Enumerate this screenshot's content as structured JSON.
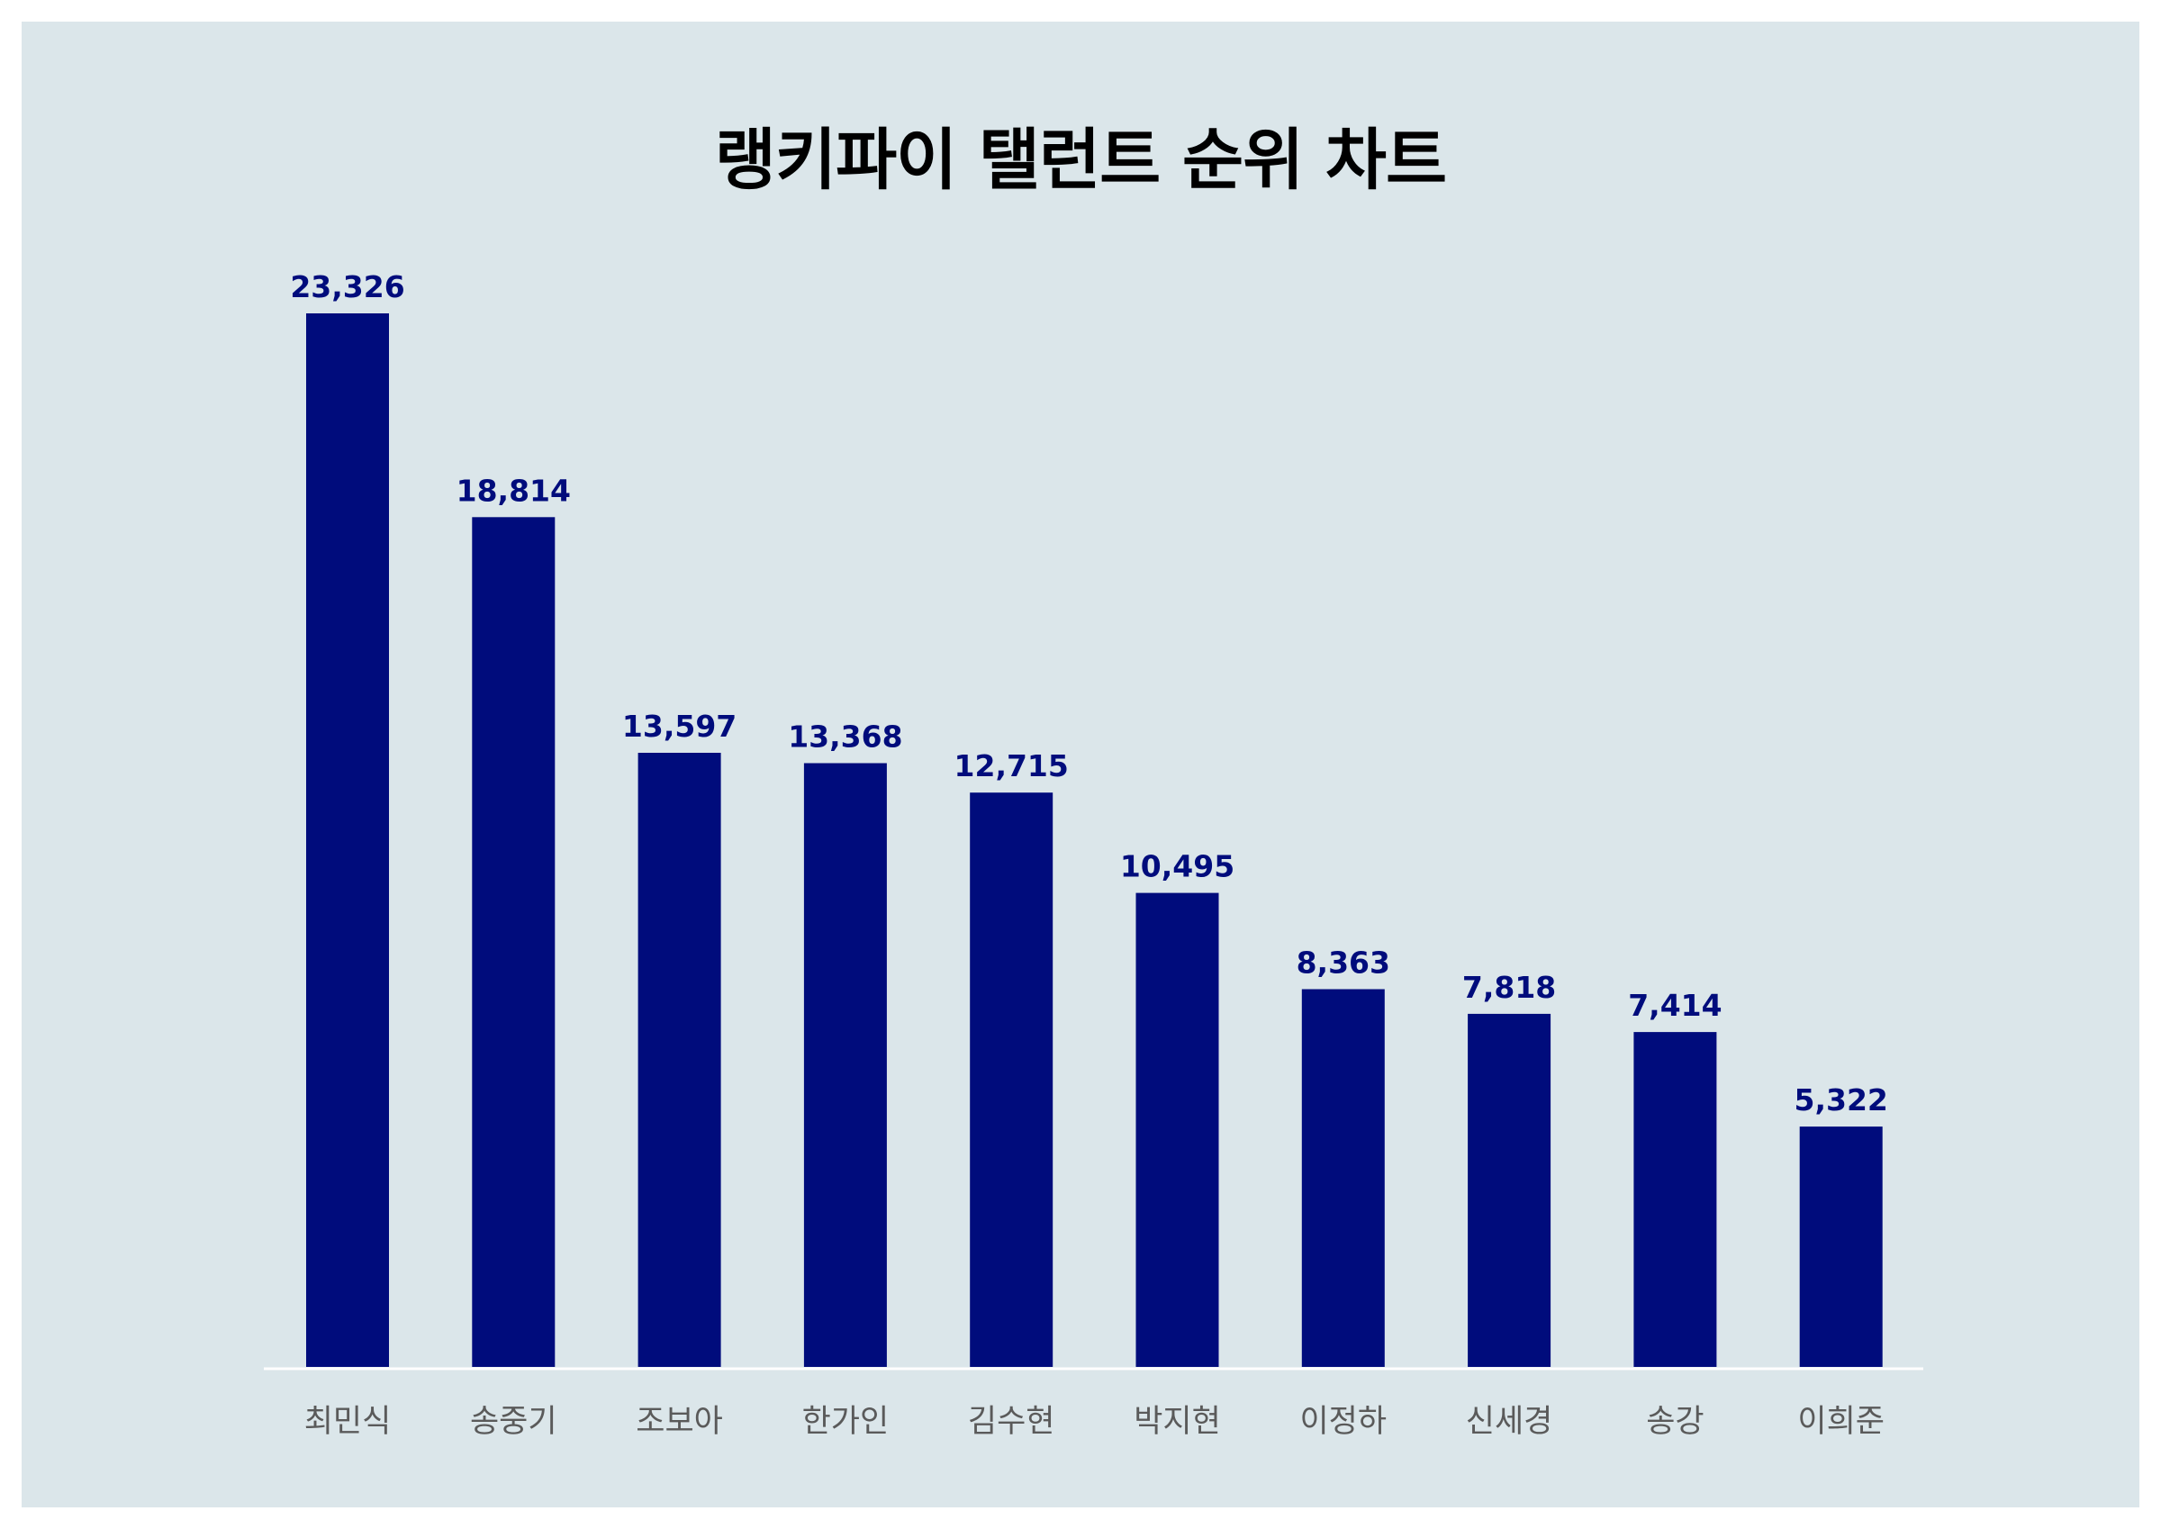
{
  "chart_data": {
    "type": "bar",
    "title": "랭키파이 탤런트 순위 차트",
    "categories": [
      "최민식",
      "송중기",
      "조보아",
      "한가인",
      "김수현",
      "박지현",
      "이정하",
      "신세경",
      "송강",
      "이희준"
    ],
    "values": [
      23326,
      18814,
      13597,
      13368,
      12715,
      10495,
      8363,
      7818,
      7414,
      5322
    ],
    "value_labels": [
      "23,326",
      "18,814",
      "13,597",
      "13,368",
      "12,715",
      "10,495",
      "8,363",
      "7,818",
      "7,414",
      "5,322"
    ],
    "xlabel": "",
    "ylabel": "",
    "ylim": [
      0,
      23326
    ],
    "grid": false,
    "legend": "none",
    "bar_color": "#000c7c",
    "background_color": "#dbe6ea",
    "axis_color": "#ffffff"
  }
}
